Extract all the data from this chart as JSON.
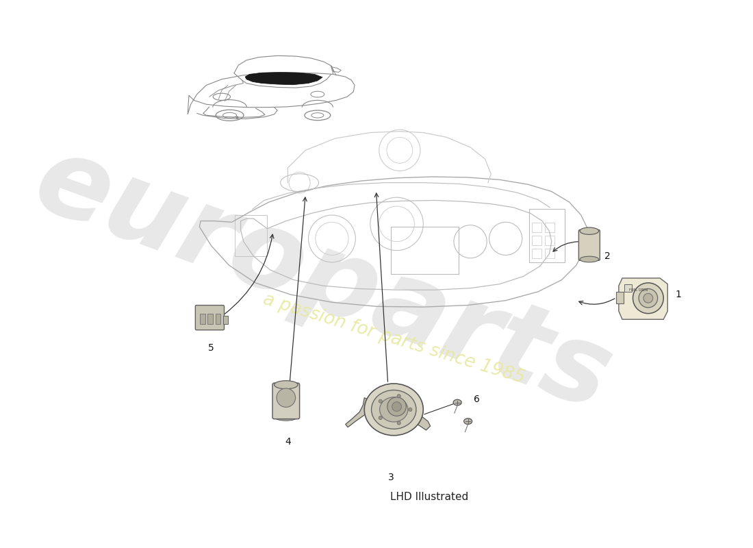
{
  "background_color": "#ffffff",
  "watermark_text1": "europarts",
  "watermark_text2": "a passion for parts since 1985",
  "footer_text": "LHD Illustrated",
  "watermark_color1": "#cccccc",
  "watermark_color2": "#e8e8a0",
  "line_color": "#555555",
  "dash_color": "#cccccc",
  "part_fill": "#e8e6dc",
  "part_edge": "#555555",
  "label_color": "#222222",
  "arrow_color": "#333333",
  "car_color": "#888888"
}
